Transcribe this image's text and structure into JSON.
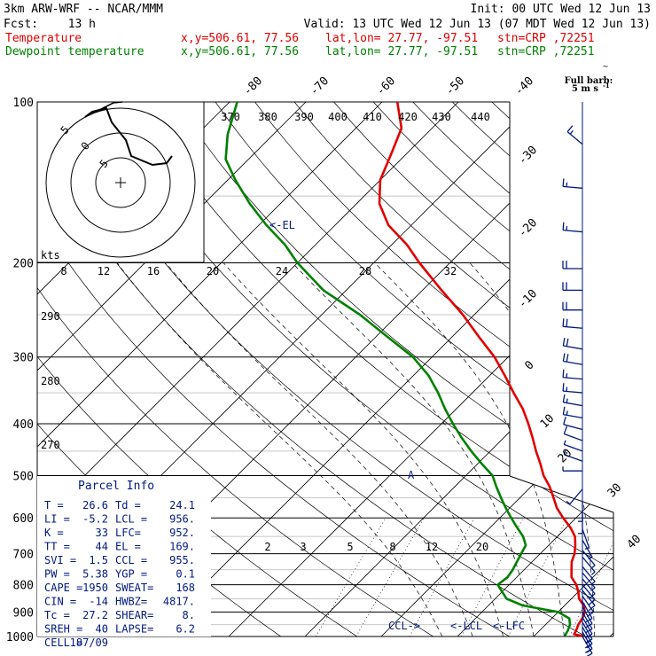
{
  "header": {
    "model": "3km ARW-WRF -- NCAR/MMM",
    "init": "Init: 00 UTC Wed 12 Jun 13",
    "fcst_label": "Fcst:",
    "fcst_value": "13 h",
    "valid": "Valid: 13 UTC Wed 12 Jun 13 (07 MDT Wed 12 Jun 13)",
    "temp_label": "Temperature",
    "dew_label": "Dewpoint temperature",
    "info_xy": "x,y=506.61, 77.56",
    "info_latlon": "lat,lon= 27.77, -97.51",
    "info_stn": "stn=CRP ,72251"
  },
  "colors": {
    "temperature": "#e00000",
    "dewpoint": "#008000",
    "wind": "#001a80",
    "grid": "#000000"
  },
  "barb_legend": {
    "line1": "Full barb:",
    "line2": "5 m s",
    "sup": "-1"
  },
  "hodograph": {
    "unit_label": "kts",
    "ring_labels": [
      "5",
      "0",
      "5"
    ],
    "bottom_ticks": [
      "8",
      "12",
      "16",
      "20",
      "24",
      "28",
      "32"
    ]
  },
  "cursor_label": "~",
  "chart_data": {
    "type": "line",
    "title": "",
    "y_axis": {
      "scale": "log-pressure",
      "range": [
        1000,
        100
      ],
      "ticks": [
        100,
        200,
        300,
        400,
        500,
        600,
        700,
        800,
        900,
        1000
      ]
    },
    "x_axis": {
      "range_deg_c": [
        -40,
        40
      ]
    },
    "isotherm_labels_top": [
      "-80",
      "-70",
      "-60",
      "-50",
      "-40"
    ],
    "isotherm_labels_right": [
      "-30",
      "-20",
      "-10",
      "0",
      "10",
      "20",
      "30",
      "40"
    ],
    "isentrope_labels_top": [
      "370",
      "380",
      "390",
      "400",
      "410",
      "420",
      "430",
      "440"
    ],
    "isentrope_labels_left": [
      "290",
      "280",
      "270"
    ],
    "mixing_ratio_labels": [
      "2",
      "3",
      "5",
      "8",
      "12",
      "20"
    ],
    "series": [
      {
        "name": "Temperature",
        "color": "#e00000",
        "points": [
          [
            1000,
            26.6
          ],
          [
            990,
            25.0
          ],
          [
            975,
            24.8
          ],
          [
            950,
            24.3
          ],
          [
            925,
            24.0
          ],
          [
            900,
            23.5
          ],
          [
            875,
            22.5
          ],
          [
            850,
            21.0
          ],
          [
            825,
            20.0
          ],
          [
            800,
            18.8
          ],
          [
            775,
            17.2
          ],
          [
            750,
            16.2
          ],
          [
            725,
            15.2
          ],
          [
            700,
            14.5
          ],
          [
            675,
            13.5
          ],
          [
            650,
            12.3
          ],
          [
            625,
            10.5
          ],
          [
            600,
            8.3
          ],
          [
            575,
            6.2
          ],
          [
            550,
            4.4
          ],
          [
            525,
            2.5
          ],
          [
            500,
            0.2
          ],
          [
            475,
            -1.8
          ],
          [
            450,
            -4.0
          ],
          [
            425,
            -6.2
          ],
          [
            400,
            -8.6
          ],
          [
            375,
            -11.3
          ],
          [
            350,
            -14.6
          ],
          [
            325,
            -18.0
          ],
          [
            300,
            -21.8
          ],
          [
            275,
            -26.5
          ],
          [
            250,
            -31.5
          ],
          [
            225,
            -37.5
          ],
          [
            200,
            -44.0
          ],
          [
            185,
            -48.0
          ],
          [
            170,
            -53.0
          ],
          [
            155,
            -57.0
          ],
          [
            140,
            -60.0
          ],
          [
            125,
            -62.0
          ],
          [
            112,
            -64.0
          ],
          [
            100,
            -68.0
          ]
        ]
      },
      {
        "name": "Dewpoint temperature",
        "color": "#008000",
        "points": [
          [
            1000,
            24.1
          ],
          [
            990,
            23.9
          ],
          [
            975,
            23.7
          ],
          [
            950,
            23.2
          ],
          [
            925,
            22.3
          ],
          [
            900,
            20.0
          ],
          [
            875,
            14.5
          ],
          [
            850,
            11.5
          ],
          [
            825,
            10.0
          ],
          [
            800,
            8.5
          ],
          [
            775,
            8.8
          ],
          [
            750,
            8.5
          ],
          [
            725,
            8.0
          ],
          [
            700,
            7.5
          ],
          [
            675,
            7.0
          ],
          [
            650,
            5.5
          ],
          [
            625,
            3.5
          ],
          [
            600,
            1.5
          ],
          [
            575,
            -0.5
          ],
          [
            550,
            -2.5
          ],
          [
            525,
            -4.5
          ],
          [
            500,
            -6.5
          ],
          [
            475,
            -9.5
          ],
          [
            450,
            -12.5
          ],
          [
            425,
            -15.5
          ],
          [
            400,
            -18.5
          ],
          [
            375,
            -21.5
          ],
          [
            350,
            -24.5
          ],
          [
            325,
            -28.0
          ],
          [
            300,
            -32.5
          ],
          [
            275,
            -38.5
          ],
          [
            250,
            -45.0
          ],
          [
            225,
            -53.0
          ],
          [
            200,
            -60.0
          ],
          [
            185,
            -64.0
          ],
          [
            170,
            -69.0
          ],
          [
            155,
            -74.0
          ],
          [
            140,
            -79.0
          ],
          [
            128,
            -83.0
          ],
          [
            115,
            -86.0
          ],
          [
            100,
            -89.0
          ]
        ]
      }
    ],
    "annotations": {
      "el": "<-EL",
      "lcl": "<-LCL",
      "lfc": "<-LFC",
      "ccl": "CCL->"
    },
    "parcel_info": {
      "title": "Parcel Info",
      "rows": [
        [
          "T  =",
          "26.6",
          "Td =",
          "24.1"
        ],
        [
          "LI =",
          "-5.2",
          "LCL =",
          "956."
        ],
        [
          "K  =",
          "33",
          "LFC=",
          "952."
        ],
        [
          "TT =",
          "44",
          "EL =",
          "169."
        ],
        [
          "SVI =",
          "1.5",
          "CCL =",
          "955."
        ],
        [
          "PW =",
          "5.38",
          "YGP =",
          "0.1"
        ],
        [
          "CAPE =",
          "1950",
          "SWEAT=",
          "168"
        ],
        [
          "CIN =",
          "-14",
          "HWBZ=",
          "4817."
        ],
        [
          "Tc =",
          "27.2",
          "SHEAR=",
          "8."
        ],
        [
          "SREH =",
          "40",
          "LAPSE=",
          "6.2"
        ],
        [
          "CELL =",
          "187/09",
          "",
          ""
        ]
      ]
    },
    "wind_profile": [
      [
        120,
        310,
        15
      ],
      [
        145,
        275,
        15
      ],
      [
        175,
        275,
        18
      ],
      [
        205,
        270,
        20
      ],
      [
        225,
        270,
        20
      ],
      [
        245,
        270,
        20
      ],
      [
        265,
        275,
        20
      ],
      [
        290,
        280,
        20
      ],
      [
        310,
        280,
        20
      ],
      [
        330,
        275,
        18
      ],
      [
        350,
        275,
        18
      ],
      [
        370,
        280,
        15
      ],
      [
        390,
        280,
        15
      ],
      [
        410,
        285,
        12
      ],
      [
        430,
        290,
        10
      ],
      [
        450,
        290,
        8
      ],
      [
        470,
        290,
        5
      ],
      [
        490,
        270,
        5
      ],
      [
        530,
        220,
        5
      ],
      [
        560,
        180,
        5
      ],
      [
        590,
        180,
        5
      ],
      [
        630,
        160,
        5
      ],
      [
        660,
        150,
        5
      ],
      [
        690,
        140,
        5
      ],
      [
        710,
        140,
        5
      ],
      [
        740,
        140,
        5
      ],
      [
        760,
        140,
        5
      ],
      [
        780,
        140,
        10
      ],
      [
        800,
        140,
        10
      ],
      [
        820,
        140,
        10
      ],
      [
        840,
        145,
        10
      ],
      [
        860,
        150,
        10
      ],
      [
        880,
        150,
        10
      ],
      [
        900,
        150,
        10
      ],
      [
        920,
        150,
        10
      ],
      [
        940,
        150,
        10
      ],
      [
        960,
        150,
        15
      ],
      [
        980,
        150,
        15
      ],
      [
        1000,
        150,
        15
      ]
    ]
  }
}
